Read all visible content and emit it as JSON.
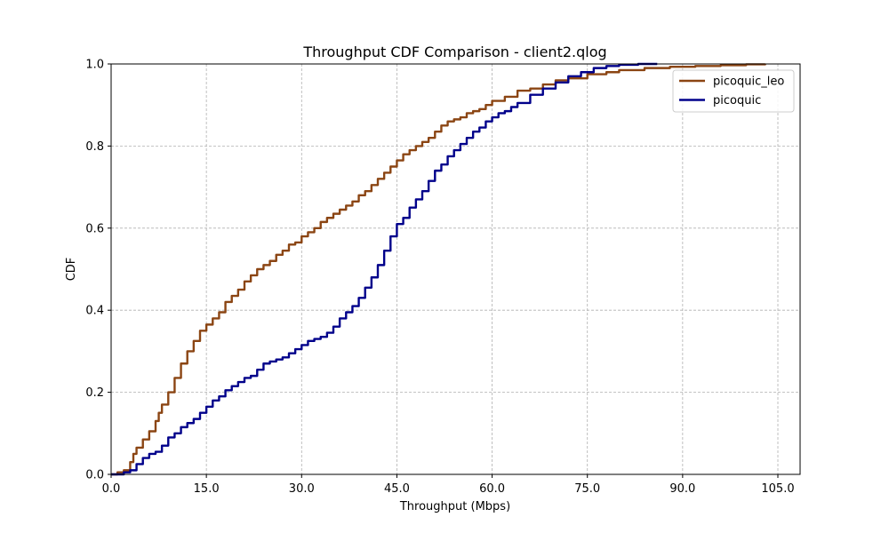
{
  "chart_data": {
    "type": "line",
    "title": "Throughput CDF Comparison - client2.qlog",
    "xlabel": "Throughput (Mbps)",
    "ylabel": "CDF",
    "xlim": [
      0,
      108.5
    ],
    "ylim": [
      0,
      1.0
    ],
    "xticks": [
      0,
      15,
      30,
      45,
      60,
      75,
      90,
      105
    ],
    "xtick_labels": [
      "0.0",
      "15.0",
      "30.0",
      "45.0",
      "60.0",
      "75.0",
      "90.0",
      "105.0"
    ],
    "yticks": [
      0,
      0.2,
      0.4,
      0.6,
      0.8,
      1.0
    ],
    "ytick_labels": [
      "0.0",
      "0.2",
      "0.4",
      "0.6",
      "0.8",
      "1.0"
    ],
    "grid": true,
    "legend_position": "top-right",
    "series": [
      {
        "name": "picoquic_leo",
        "color": "#8b4513",
        "x": [
          0,
          1,
          2,
          3,
          3.5,
          4,
          5,
          6,
          7,
          7.5,
          8,
          9,
          10,
          11,
          12,
          13,
          14,
          15,
          16,
          17,
          18,
          19,
          20,
          21,
          22,
          23,
          24,
          25,
          26,
          27,
          28,
          29,
          30,
          31,
          32,
          33,
          34,
          35,
          36,
          37,
          38,
          39,
          40,
          41,
          42,
          43,
          44,
          45,
          46,
          47,
          48,
          49,
          50,
          51,
          52,
          53,
          54,
          55,
          56,
          57,
          58,
          59,
          60,
          62,
          64,
          66,
          68,
          70,
          72,
          75,
          78,
          80,
          84,
          88,
          92,
          96,
          100,
          103
        ],
        "y": [
          0.0,
          0.005,
          0.01,
          0.03,
          0.05,
          0.065,
          0.085,
          0.105,
          0.13,
          0.15,
          0.17,
          0.2,
          0.235,
          0.27,
          0.3,
          0.325,
          0.35,
          0.365,
          0.38,
          0.395,
          0.42,
          0.435,
          0.45,
          0.47,
          0.485,
          0.5,
          0.51,
          0.52,
          0.535,
          0.545,
          0.56,
          0.565,
          0.58,
          0.59,
          0.6,
          0.615,
          0.625,
          0.635,
          0.645,
          0.655,
          0.665,
          0.68,
          0.69,
          0.705,
          0.72,
          0.735,
          0.75,
          0.765,
          0.78,
          0.79,
          0.8,
          0.81,
          0.82,
          0.835,
          0.85,
          0.86,
          0.865,
          0.87,
          0.88,
          0.885,
          0.89,
          0.9,
          0.91,
          0.92,
          0.935,
          0.94,
          0.95,
          0.96,
          0.965,
          0.975,
          0.98,
          0.985,
          0.99,
          0.993,
          0.995,
          0.997,
          0.999,
          1.0
        ]
      },
      {
        "name": "picoquic",
        "color": "#00008b",
        "x": [
          0,
          2,
          3,
          4,
          5,
          6,
          7,
          8,
          9,
          10,
          11,
          12,
          13,
          14,
          15,
          16,
          17,
          18,
          19,
          20,
          21,
          22,
          23,
          24,
          25,
          26,
          27,
          28,
          29,
          30,
          31,
          32,
          33,
          34,
          35,
          36,
          37,
          38,
          39,
          40,
          41,
          42,
          43,
          44,
          45,
          46,
          47,
          48,
          49,
          50,
          51,
          52,
          53,
          54,
          55,
          56,
          57,
          58,
          59,
          60,
          61,
          62,
          63,
          64,
          66,
          68,
          70,
          72,
          74,
          76,
          78,
          80,
          83,
          86
        ],
        "y": [
          0.0,
          0.005,
          0.01,
          0.025,
          0.04,
          0.05,
          0.055,
          0.07,
          0.09,
          0.1,
          0.115,
          0.125,
          0.135,
          0.15,
          0.165,
          0.18,
          0.19,
          0.205,
          0.215,
          0.225,
          0.235,
          0.24,
          0.255,
          0.27,
          0.275,
          0.28,
          0.285,
          0.295,
          0.305,
          0.315,
          0.325,
          0.33,
          0.335,
          0.345,
          0.36,
          0.38,
          0.395,
          0.41,
          0.43,
          0.455,
          0.48,
          0.51,
          0.545,
          0.58,
          0.61,
          0.625,
          0.65,
          0.67,
          0.69,
          0.715,
          0.74,
          0.755,
          0.775,
          0.79,
          0.805,
          0.82,
          0.835,
          0.845,
          0.86,
          0.87,
          0.88,
          0.885,
          0.895,
          0.905,
          0.925,
          0.94,
          0.955,
          0.97,
          0.98,
          0.99,
          0.995,
          0.998,
          1.0,
          1.0
        ]
      }
    ]
  }
}
